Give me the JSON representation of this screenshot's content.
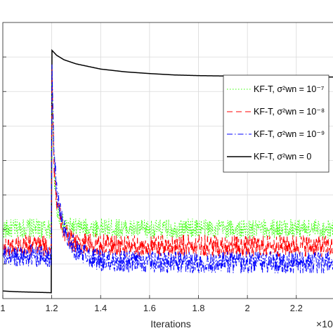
{
  "chart_data": {
    "type": "line",
    "xlabel": "Iterations",
    "x_exponent_label": "×10",
    "ylabel": "",
    "xlim": [
      1.0,
      2.35
    ],
    "ylim": [
      0,
      8
    ],
    "grid": true,
    "x_ticks": [
      1.0,
      1.2,
      1.4,
      1.6,
      1.8,
      2.0,
      2.2
    ],
    "x_tick_labels": [
      "1",
      "1.2",
      "1.4",
      "1.6",
      "1.8",
      "2",
      "2.2"
    ],
    "y_ticks": [
      1,
      2,
      3,
      4,
      5,
      6,
      7
    ],
    "legend": {
      "position": "right",
      "entries": [
        {
          "label": "KF-T, σ²wn = 10⁻⁷",
          "color": "#33ff00",
          "dash": "1.5,2.5"
        },
        {
          "label": "KF-T, σ²wn = 10⁻⁸",
          "color": "#ff0000",
          "dash": "8,5"
        },
        {
          "label": "KF-T, σ²wn = 10⁻⁹",
          "color": "#0000ff",
          "dash": "8,3,1.5,3"
        },
        {
          "label": "KF-T, σ²wn = 0",
          "color": "#000000",
          "dash": ""
        }
      ]
    },
    "series": [
      {
        "name": "KF-T, σ²wn = 10⁻⁷",
        "color": "#33ff00",
        "x": [
          1.0,
          1.1,
          1.199,
          1.2,
          1.205,
          1.21,
          1.22,
          1.25,
          1.3,
          1.4,
          1.6,
          1.8,
          2.0,
          2.2,
          2.35
        ],
        "y": [
          2.0,
          2.05,
          2.0,
          7.1,
          5.0,
          3.6,
          2.6,
          2.1,
          2.05,
          2.05,
          2.0,
          2.05,
          2.0,
          2.05,
          2.0
        ]
      },
      {
        "name": "KF-T, σ²wn = 10⁻⁸",
        "color": "#ff0000",
        "x": [
          1.0,
          1.1,
          1.199,
          1.2,
          1.205,
          1.21,
          1.22,
          1.25,
          1.3,
          1.4,
          1.6,
          1.8,
          2.0,
          2.2,
          2.35
        ],
        "y": [
          1.5,
          1.55,
          1.5,
          7.1,
          5.2,
          3.8,
          2.8,
          1.9,
          1.6,
          1.55,
          1.5,
          1.55,
          1.5,
          1.55,
          1.5
        ]
      },
      {
        "name": "KF-T, σ²wn = 10⁻⁹",
        "color": "#0000ff",
        "x": [
          1.0,
          1.1,
          1.199,
          1.2,
          1.205,
          1.21,
          1.22,
          1.25,
          1.3,
          1.4,
          1.6,
          1.8,
          2.0,
          2.2,
          2.35
        ],
        "y": [
          1.2,
          1.25,
          1.2,
          7.1,
          5.5,
          4.3,
          3.1,
          2.0,
          1.4,
          1.1,
          1.05,
          1.05,
          1.05,
          1.05,
          1.05
        ]
      },
      {
        "name": "KF-T, σ²wn = 0",
        "color": "#000000",
        "x": [
          1.0,
          1.05,
          1.1,
          1.15,
          1.199,
          1.2,
          1.22,
          1.25,
          1.3,
          1.4,
          1.5,
          1.6,
          1.7,
          1.8,
          1.9,
          2.0,
          2.1,
          2.2,
          2.35
        ],
        "y": [
          0.22,
          0.2,
          0.19,
          0.18,
          0.17,
          7.2,
          7.05,
          6.92,
          6.8,
          6.65,
          6.57,
          6.52,
          6.48,
          6.46,
          6.45,
          6.44,
          6.43,
          6.43,
          6.42
        ]
      }
    ]
  }
}
